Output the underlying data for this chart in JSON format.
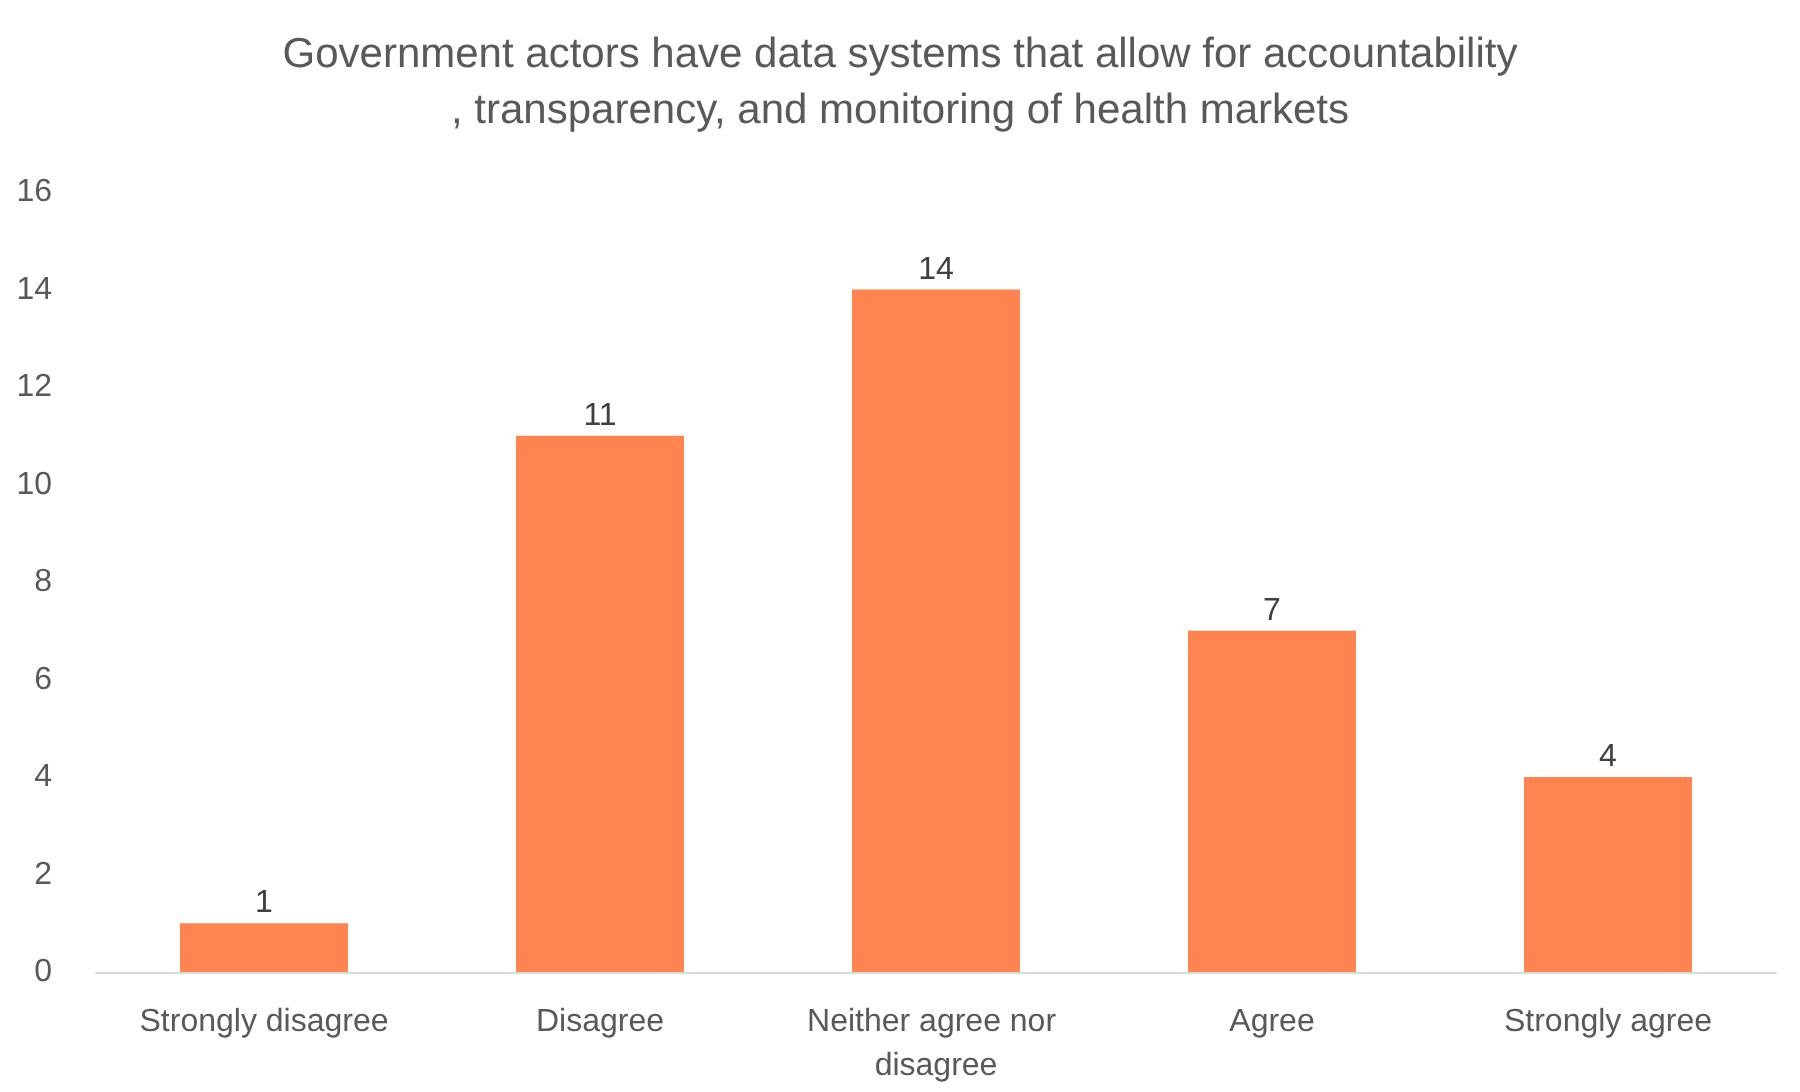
{
  "chart_data": {
    "type": "bar",
    "title": "Government actors have data systems that allow for accountability, transparency, and monitoring of health markets",
    "categories": [
      "Strongly disagree",
      "Disagree",
      "Neither agree nor disagree",
      "Agree",
      "Strongly agree"
    ],
    "values": [
      1,
      11,
      14,
      7,
      4
    ],
    "color": "#ff8450",
    "ylim": [
      0,
      16
    ],
    "yticks": [
      0,
      2,
      4,
      6,
      8,
      10,
      12,
      14,
      16
    ],
    "grid": false,
    "data_labels": true
  }
}
